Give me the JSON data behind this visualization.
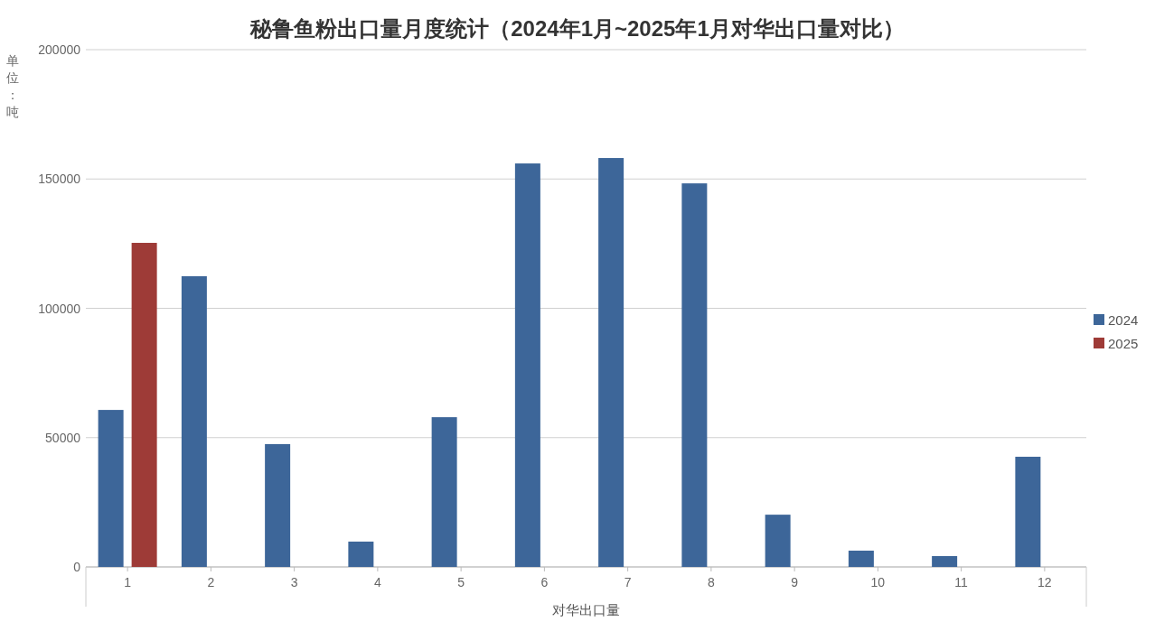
{
  "chart_data": {
    "type": "bar",
    "title": "秘鲁鱼粉出口量月度统计（2024年1月~2025年1月对华出口量对比）",
    "xlabel": "对华出口量",
    "ylabel": "单位：吨",
    "categories": [
      "1",
      "2",
      "3",
      "4",
      "5",
      "6",
      "7",
      "8",
      "9",
      "10",
      "11",
      "12"
    ],
    "series": [
      {
        "name": "2024",
        "color": "#3d6699",
        "values": [
          60700,
          112400,
          47500,
          9800,
          57900,
          156000,
          158100,
          148300,
          20200,
          6300,
          4200,
          42600
        ]
      },
      {
        "name": "2025",
        "color": "#9e3b37",
        "values": [
          125300,
          null,
          null,
          null,
          null,
          null,
          null,
          null,
          null,
          null,
          null,
          null
        ]
      }
    ],
    "ylim": [
      0,
      200000
    ],
    "yticks": [
      0,
      50000,
      100000,
      150000,
      200000
    ],
    "grid": "y",
    "legend": "right"
  }
}
